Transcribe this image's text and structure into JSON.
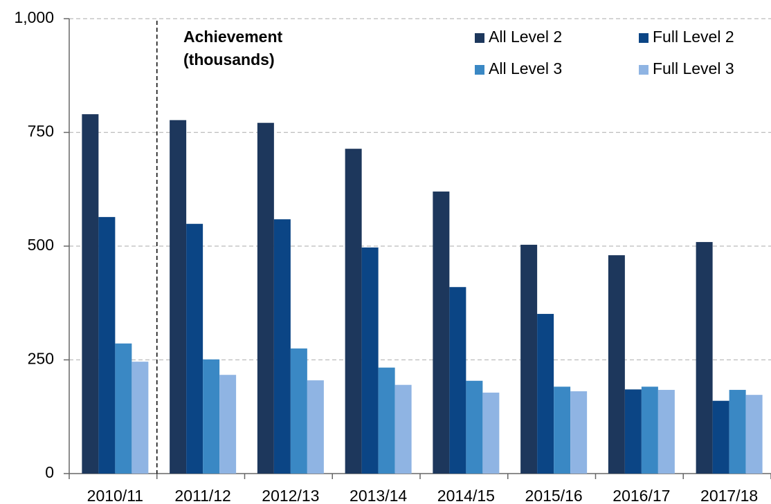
{
  "chart_data": {
    "type": "bar",
    "annotation": [
      "Achievement",
      "(thousands)"
    ],
    "categories": [
      "2010/11",
      "2011/12",
      "2012/13",
      "2013/14",
      "2014/15",
      "2015/16",
      "2016/17",
      "2017/18"
    ],
    "series": [
      {
        "name": "All Level 2",
        "color": "#1d375c",
        "values": [
          790,
          777,
          771,
          714,
          620,
          503,
          480,
          509
        ]
      },
      {
        "name": "Full Level 2",
        "color": "#0b4585",
        "values": [
          564,
          549,
          559,
          497,
          410,
          351,
          185,
          160
        ]
      },
      {
        "name": "All Level 3",
        "color": "#3a88c4",
        "values": [
          286,
          251,
          275,
          233,
          204,
          191,
          191,
          184
        ]
      },
      {
        "name": "Full Level 3",
        "color": "#8fb4e3",
        "values": [
          246,
          217,
          205,
          195,
          178,
          181,
          184,
          173
        ]
      }
    ],
    "ylim": [
      0,
      1000
    ],
    "yticks": [
      0,
      250,
      500,
      750,
      {
        "value": 1000,
        "label": "1,000"
      }
    ],
    "grid": true
  }
}
